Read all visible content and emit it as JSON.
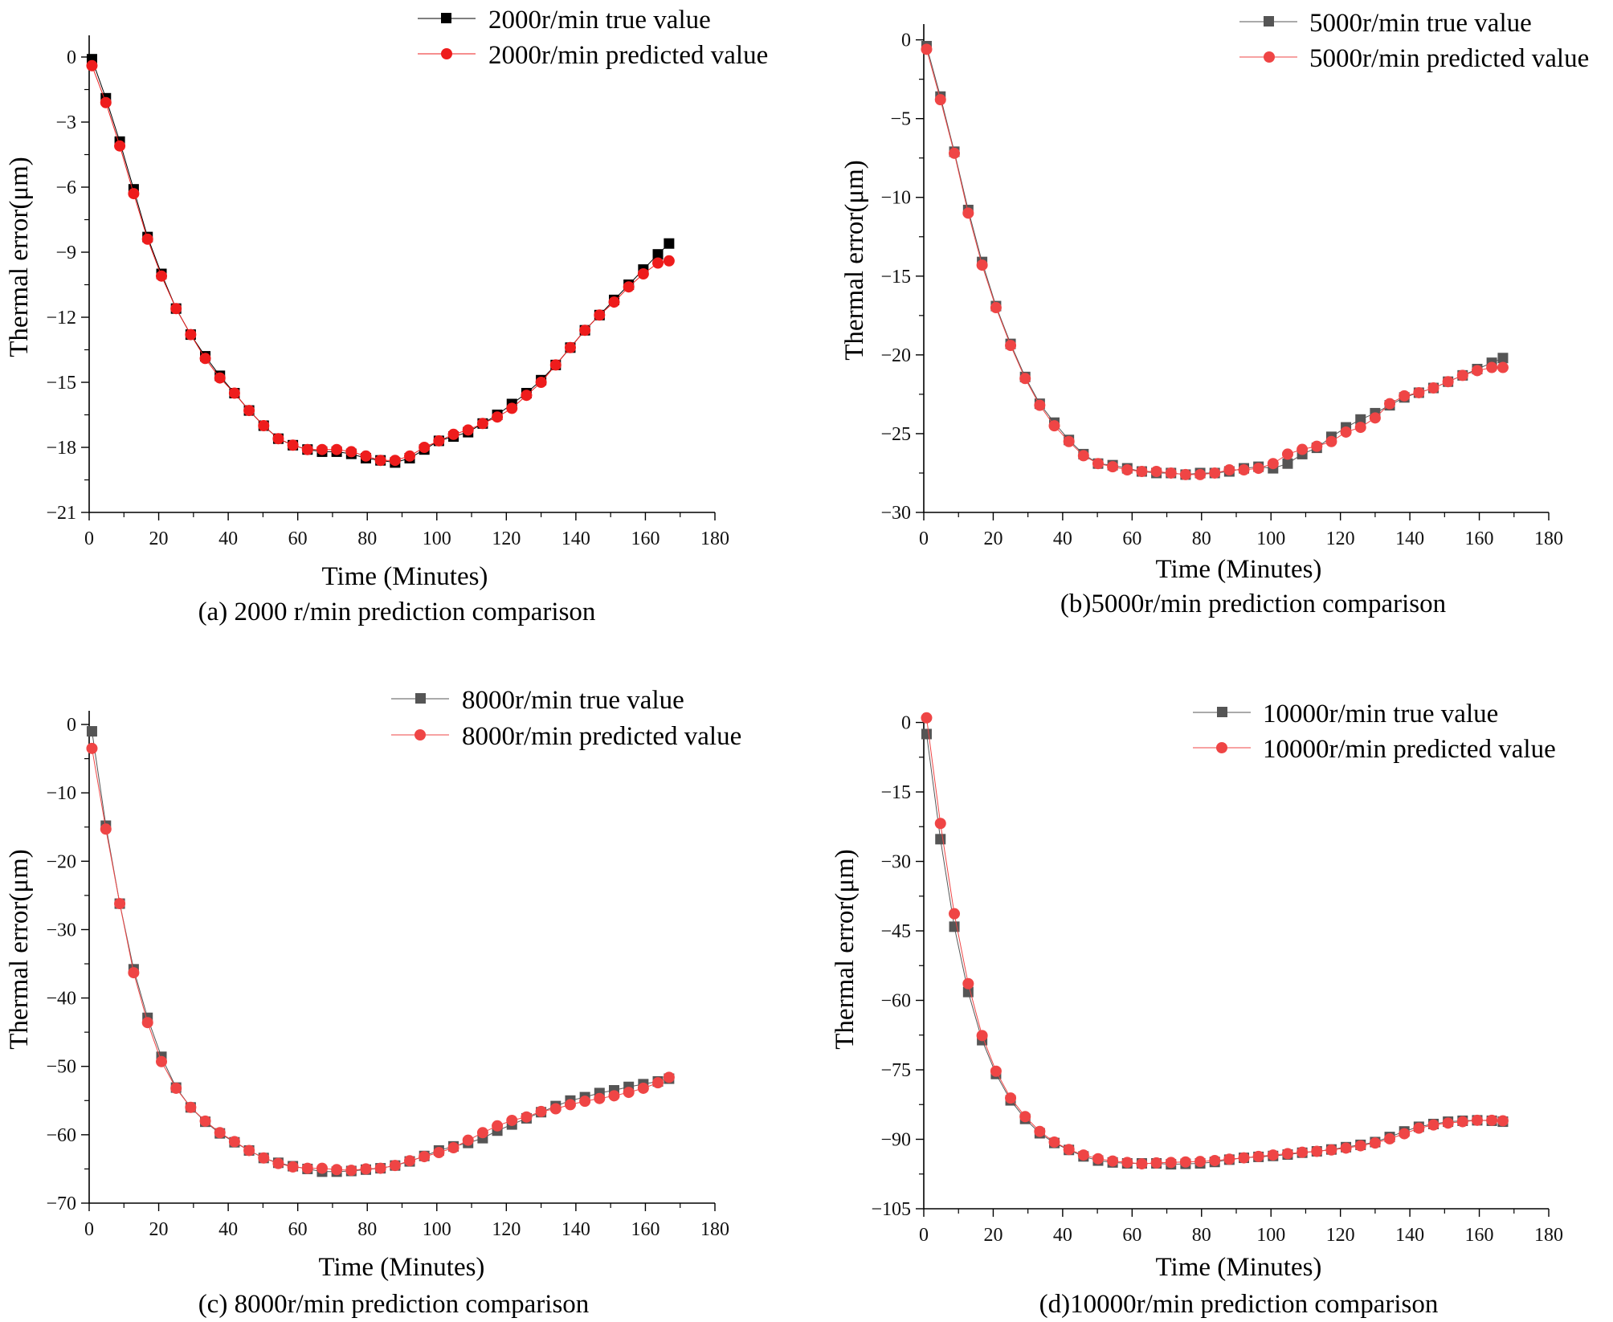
{
  "figure": {
    "layout": "2x2 grid of scatter/line comparison plots"
  },
  "chart_data": [
    {
      "type": "line",
      "caption": "(a) 2000 r/min prediction comparison",
      "xlabel": "Time (Minutes)",
      "ylabel": "Thermal error(μm)",
      "xlim": [
        0,
        180
      ],
      "ylim": [
        -21,
        1
      ],
      "xticks": [
        0,
        20,
        40,
        60,
        80,
        100,
        120,
        140,
        160,
        180
      ],
      "yticks": [
        0,
        -3,
        -6,
        -9,
        -12,
        -15,
        -18,
        -21
      ],
      "legend_position": "top-right",
      "x": [
        0.8,
        4.8,
        8.8,
        12.8,
        16.8,
        20.8,
        25.0,
        29.2,
        33.4,
        37.6,
        41.8,
        46.0,
        50.2,
        54.4,
        58.6,
        62.8,
        67.0,
        71.2,
        75.4,
        79.6,
        83.8,
        88.0,
        92.2,
        96.4,
        100.6,
        104.8,
        109.0,
        113.2,
        117.4,
        121.6,
        125.8,
        130.0,
        134.2,
        138.4,
        142.6,
        146.8,
        151.0,
        155.2,
        159.4,
        163.6,
        166.8
      ],
      "series": [
        {
          "name": "2000r/min true value",
          "marker": "square",
          "color": "#000000",
          "values": [
            -0.1,
            -1.9,
            -3.9,
            -6.1,
            -8.3,
            -10.0,
            -11.6,
            -12.8,
            -13.8,
            -14.7,
            -15.5,
            -16.3,
            -17.0,
            -17.6,
            -17.9,
            -18.1,
            -18.2,
            -18.2,
            -18.3,
            -18.5,
            -18.6,
            -18.7,
            -18.5,
            -18.1,
            -17.7,
            -17.5,
            -17.3,
            -16.9,
            -16.5,
            -16.0,
            -15.5,
            -14.9,
            -14.2,
            -13.4,
            -12.6,
            -11.9,
            -11.2,
            -10.5,
            -9.8,
            -9.1,
            -8.6
          ]
        },
        {
          "name": "2000r/min predicted value",
          "marker": "circle",
          "color": "#ee1c1c",
          "values": [
            -0.4,
            -2.1,
            -4.1,
            -6.3,
            -8.4,
            -10.1,
            -11.6,
            -12.8,
            -13.9,
            -14.8,
            -15.5,
            -16.3,
            -17.0,
            -17.6,
            -17.9,
            -18.1,
            -18.1,
            -18.1,
            -18.2,
            -18.4,
            -18.6,
            -18.6,
            -18.4,
            -18.0,
            -17.7,
            -17.4,
            -17.2,
            -16.9,
            -16.6,
            -16.2,
            -15.6,
            -15.0,
            -14.2,
            -13.4,
            -12.6,
            -11.9,
            -11.3,
            -10.6,
            -10.0,
            -9.5,
            -9.4
          ]
        }
      ]
    },
    {
      "type": "line",
      "caption": "(b)5000r/min prediction comparison",
      "xlabel": "Time (Minutes)",
      "ylabel": "Thermal error(μm)",
      "xlim": [
        0,
        180
      ],
      "ylim": [
        -30,
        1
      ],
      "xticks": [
        0,
        20,
        40,
        60,
        80,
        100,
        120,
        140,
        160,
        180
      ],
      "yticks": [
        0,
        -5,
        -10,
        -15,
        -20,
        -25,
        -30
      ],
      "legend_position": "top-right",
      "x": [
        0.8,
        4.8,
        8.8,
        12.8,
        16.8,
        20.8,
        25.0,
        29.2,
        33.4,
        37.6,
        41.8,
        46.0,
        50.2,
        54.4,
        58.6,
        62.8,
        67.0,
        71.2,
        75.4,
        79.6,
        83.8,
        88.0,
        92.2,
        96.4,
        100.6,
        104.8,
        109.0,
        113.2,
        117.4,
        121.6,
        125.8,
        130.0,
        134.2,
        138.4,
        142.6,
        146.8,
        151.0,
        155.2,
        159.4,
        163.6,
        166.8
      ],
      "series": [
        {
          "name": "5000r/min true value",
          "marker": "square",
          "color": "#555555",
          "values": [
            -0.4,
            -3.6,
            -7.1,
            -10.8,
            -14.1,
            -16.9,
            -19.3,
            -21.4,
            -23.1,
            -24.3,
            -25.4,
            -26.3,
            -26.9,
            -27.0,
            -27.2,
            -27.4,
            -27.5,
            -27.5,
            -27.6,
            -27.5,
            -27.5,
            -27.4,
            -27.2,
            -27.1,
            -27.2,
            -26.9,
            -26.3,
            -25.9,
            -25.2,
            -24.6,
            -24.1,
            -23.7,
            -23.2,
            -22.7,
            -22.4,
            -22.1,
            -21.7,
            -21.3,
            -20.9,
            -20.5,
            -20.2
          ]
        },
        {
          "name": "5000r/min predicted value",
          "marker": "circle",
          "color": "#ef4545",
          "values": [
            -0.6,
            -3.8,
            -7.2,
            -11.0,
            -14.3,
            -17.0,
            -19.4,
            -21.5,
            -23.2,
            -24.5,
            -25.5,
            -26.4,
            -26.9,
            -27.1,
            -27.3,
            -27.4,
            -27.4,
            -27.5,
            -27.6,
            -27.6,
            -27.5,
            -27.3,
            -27.3,
            -27.2,
            -26.9,
            -26.3,
            -26.0,
            -25.8,
            -25.5,
            -24.9,
            -24.6,
            -24.0,
            -23.1,
            -22.6,
            -22.4,
            -22.1,
            -21.7,
            -21.3,
            -21.0,
            -20.8,
            -20.8
          ]
        }
      ]
    },
    {
      "type": "line",
      "caption": "(c) 8000r/min prediction comparison",
      "xlabel": "Time (Minutes)",
      "ylabel": "Thermal error(μm)",
      "xlim": [
        0,
        180
      ],
      "ylim": [
        -70,
        2
      ],
      "xticks": [
        0,
        20,
        40,
        60,
        80,
        100,
        120,
        140,
        160,
        180
      ],
      "yticks": [
        0,
        -10,
        -20,
        -30,
        -40,
        -50,
        -60,
        -70
      ],
      "legend_position": "top-right",
      "x": [
        0.8,
        4.8,
        8.8,
        12.8,
        16.8,
        20.8,
        25.0,
        29.2,
        33.4,
        37.6,
        41.8,
        46.0,
        50.2,
        54.4,
        58.6,
        62.8,
        67.0,
        71.2,
        75.4,
        79.6,
        83.8,
        88.0,
        92.2,
        96.4,
        100.6,
        104.8,
        109.0,
        113.2,
        117.4,
        121.6,
        125.8,
        130.0,
        134.2,
        138.4,
        142.6,
        146.8,
        151.0,
        155.2,
        159.4,
        163.6,
        166.8
      ],
      "series": [
        {
          "name": "8000r/min true value",
          "marker": "square",
          "color": "#555555",
          "values": [
            -1.0,
            -14.8,
            -26.2,
            -35.8,
            -42.9,
            -48.6,
            -53.1,
            -56.0,
            -58.1,
            -59.8,
            -61.1,
            -62.3,
            -63.4,
            -64.1,
            -64.6,
            -65.0,
            -65.4,
            -65.4,
            -65.3,
            -65.1,
            -64.9,
            -64.5,
            -63.9,
            -63.1,
            -62.3,
            -61.7,
            -61.2,
            -60.5,
            -59.4,
            -58.5,
            -57.6,
            -56.7,
            -55.8,
            -55.0,
            -54.5,
            -53.9,
            -53.5,
            -53.0,
            -52.6,
            -52.2,
            -51.8
          ]
        },
        {
          "name": "8000r/min predicted value",
          "marker": "circle",
          "color": "#ef4545",
          "values": [
            -3.5,
            -15.3,
            -26.2,
            -36.3,
            -43.6,
            -49.3,
            -53.2,
            -56.0,
            -58.0,
            -59.7,
            -61.0,
            -62.3,
            -63.4,
            -64.2,
            -64.7,
            -64.9,
            -64.9,
            -65.1,
            -65.2,
            -65.0,
            -64.9,
            -64.5,
            -63.8,
            -63.2,
            -62.6,
            -61.9,
            -60.8,
            -59.7,
            -58.7,
            -57.9,
            -57.4,
            -56.6,
            -56.2,
            -55.6,
            -55.1,
            -54.7,
            -54.3,
            -53.8,
            -53.2,
            -52.4,
            -51.6
          ]
        }
      ]
    },
    {
      "type": "line",
      "caption": "(d)10000r/min prediction comparison",
      "xlabel": "Time (Minutes)",
      "ylabel": "Thermal error(μm)",
      "xlim": [
        0,
        180
      ],
      "ylim": [
        -105,
        2
      ],
      "xticks": [
        0,
        20,
        40,
        60,
        80,
        100,
        120,
        140,
        160,
        180
      ],
      "yticks": [
        0,
        -15,
        -30,
        -45,
        -60,
        -75,
        -90,
        -105
      ],
      "legend_position": "top-right",
      "x": [
        0.8,
        4.8,
        8.8,
        12.8,
        16.8,
        20.8,
        25.0,
        29.2,
        33.4,
        37.6,
        41.8,
        46.0,
        50.2,
        54.4,
        58.6,
        62.8,
        67.0,
        71.2,
        75.4,
        79.6,
        83.8,
        88.0,
        92.2,
        96.4,
        100.6,
        104.8,
        109.0,
        113.2,
        117.4,
        121.6,
        125.8,
        130.0,
        134.2,
        138.4,
        142.6,
        146.8,
        151.0,
        155.2,
        159.4,
        163.6,
        166.8
      ],
      "series": [
        {
          "name": "10000r/min true value",
          "marker": "square",
          "color": "#555555",
          "values": [
            -2.5,
            -25.2,
            -44.1,
            -58.2,
            -68.6,
            -75.9,
            -81.6,
            -85.6,
            -88.7,
            -90.8,
            -92.3,
            -93.7,
            -94.6,
            -95.0,
            -95.2,
            -95.2,
            -95.2,
            -95.4,
            -95.3,
            -95.2,
            -94.9,
            -94.4,
            -94.0,
            -93.8,
            -93.6,
            -93.3,
            -92.9,
            -92.6,
            -92.2,
            -91.7,
            -91.2,
            -90.6,
            -89.5,
            -88.3,
            -87.3,
            -86.7,
            -86.2,
            -86.0,
            -85.9,
            -86.0,
            -86.2
          ]
        },
        {
          "name": "10000r/min predicted value",
          "marker": "circle",
          "color": "#ef4545",
          "values": [
            1.0,
            -21.8,
            -41.3,
            -56.4,
            -67.6,
            -75.3,
            -81.1,
            -85.1,
            -88.3,
            -90.6,
            -92.2,
            -93.4,
            -94.2,
            -94.7,
            -95.0,
            -95.3,
            -95.1,
            -95.0,
            -94.9,
            -94.8,
            -94.6,
            -94.3,
            -94.0,
            -93.7,
            -93.4,
            -93.1,
            -92.8,
            -92.6,
            -92.3,
            -91.9,
            -91.4,
            -90.8,
            -89.9,
            -88.8,
            -87.6,
            -86.9,
            -86.5,
            -86.2,
            -85.9,
            -85.9,
            -86.0
          ]
        }
      ]
    }
  ]
}
